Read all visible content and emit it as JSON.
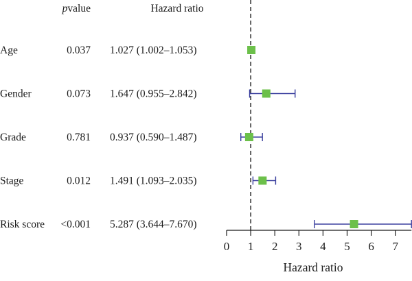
{
  "chart_data": {
    "type": "forest",
    "headers": {
      "pvalue_italic": "p",
      "pvalue_rest": "value",
      "hr": "Hazard ratio"
    },
    "rows": [
      {
        "label": "Age",
        "pvalue": "0.037",
        "hr_text": "1.027 (1.002–1.053)",
        "hr": 1.027,
        "lower": 1.002,
        "upper": 1.053
      },
      {
        "label": "Gender",
        "pvalue": "0.073",
        "hr_text": "1.647 (0.955–2.842)",
        "hr": 1.647,
        "lower": 0.955,
        "upper": 2.842
      },
      {
        "label": "Grade",
        "pvalue": "0.781",
        "hr_text": "0.937 (0.590–1.487)",
        "hr": 0.937,
        "lower": 0.59,
        "upper": 1.487
      },
      {
        "label": "Stage",
        "pvalue": "0.012",
        "hr_text": "1.491 (1.093–2.035)",
        "hr": 1.491,
        "lower": 1.093,
        "upper": 2.035
      },
      {
        "label": "Risk score",
        "pvalue": "<0.001",
        "hr_text": "5.287 (3.644–7.670)",
        "hr": 5.287,
        "lower": 3.644,
        "upper": 7.67
      }
    ],
    "x_ticks": [
      0,
      1,
      2,
      3,
      4,
      5,
      6,
      7
    ],
    "xlim": [
      0,
      7.67
    ],
    "reference_line": 1,
    "xlabel": "Hazard ratio",
    "point_color": "#6cc04a",
    "ci_color": "#3a3f9e"
  }
}
